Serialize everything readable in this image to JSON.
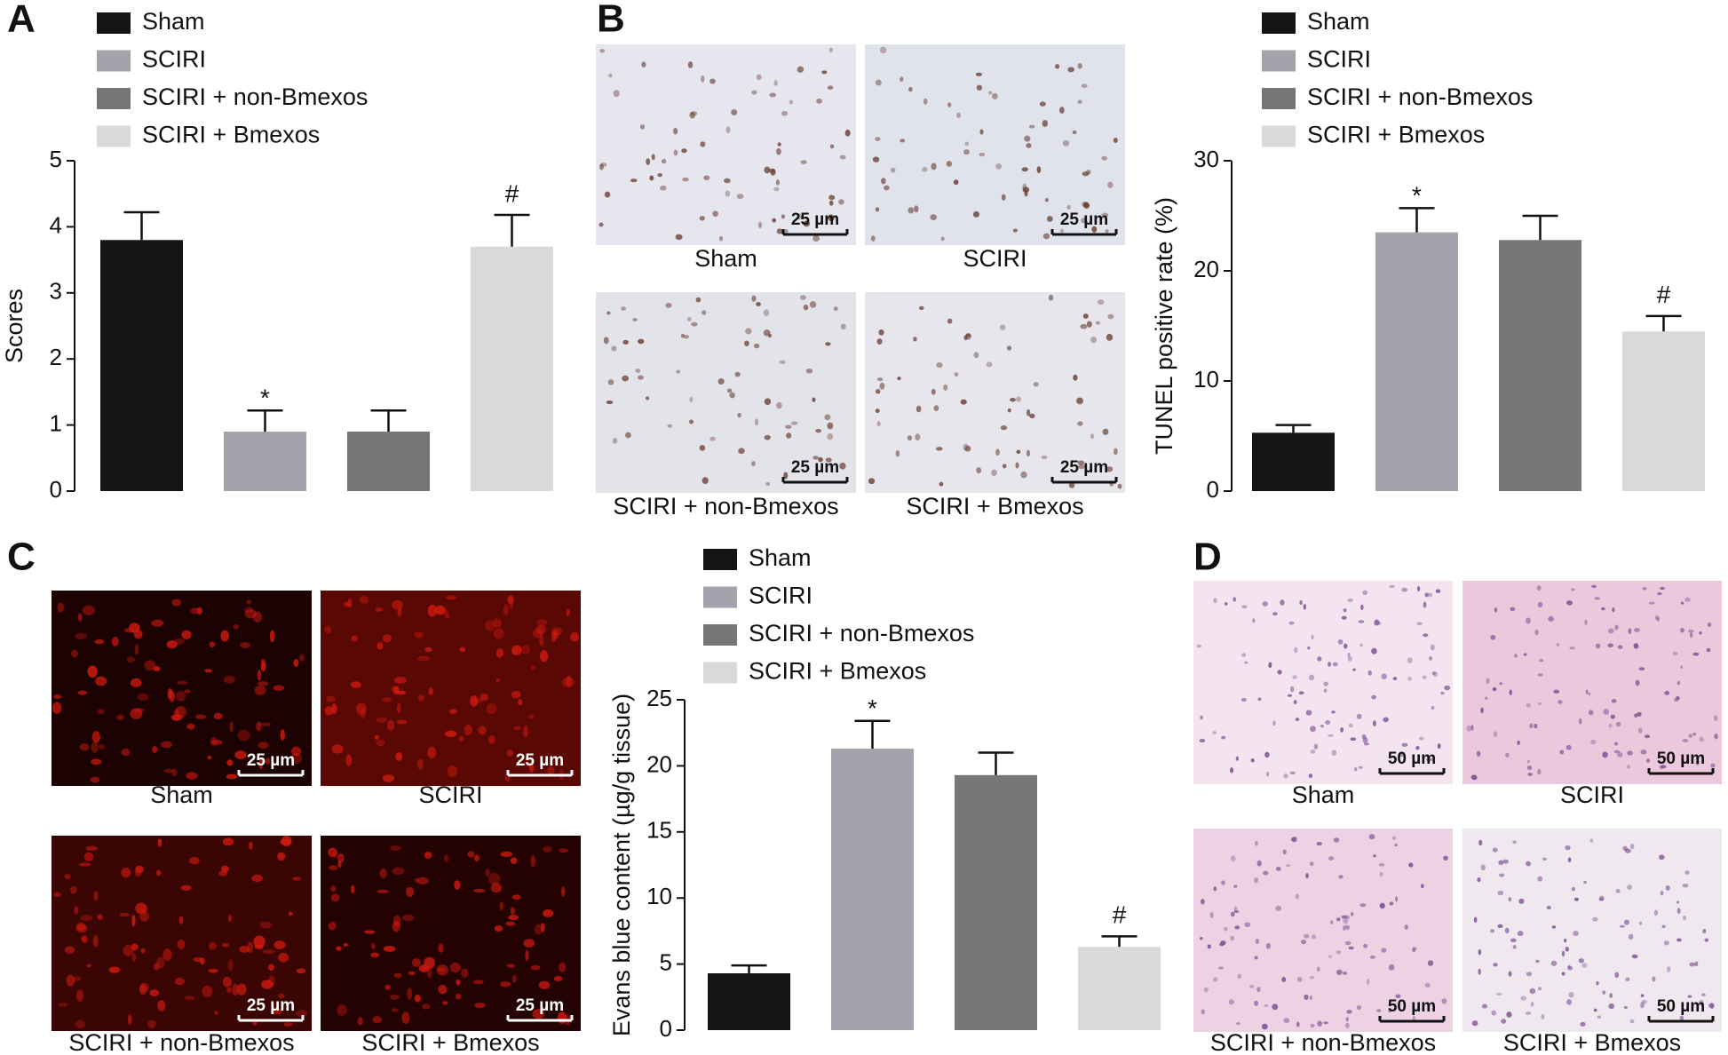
{
  "chart_data": [
    {
      "type": "bar",
      "ylabel": "Scores",
      "categories": [
        "Sham",
        "SCIRI",
        "SCIRI + non-Bmexos",
        "SCIRI + Bmexos"
      ],
      "colors": [
        "#141414",
        "#a3a3ab",
        "#767676",
        "#d9d9d9"
      ],
      "values": [
        3.8,
        0.9,
        0.9,
        3.7
      ],
      "errors": [
        0.42,
        0.32,
        0.32,
        0.48
      ],
      "annotations": [
        null,
        "*",
        null,
        "#"
      ],
      "ylim": [
        0,
        5
      ],
      "yticks": [
        0,
        1,
        2,
        3,
        4,
        5
      ]
    },
    {
      "type": "bar",
      "ylabel": "TUNEL positive rate (%)",
      "categories": [
        "Sham",
        "SCIRI",
        "SCIRI + non-Bmexos",
        "SCIRI + Bmexos"
      ],
      "colors": [
        "#141414",
        "#a3a3ab",
        "#767676",
        "#d9d9d9"
      ],
      "values": [
        5.3,
        23.5,
        22.8,
        14.5
      ],
      "errors": [
        0.7,
        2.2,
        2.2,
        1.4
      ],
      "annotations": [
        null,
        "*",
        null,
        "#"
      ],
      "ylim": [
        0,
        30
      ],
      "yticks": [
        0,
        10,
        20,
        30
      ]
    },
    {
      "type": "bar",
      "ylabel": "Evans blue content (µg/g tissue)",
      "categories": [
        "Sham",
        "SCIRI",
        "SCIRI + non-Bmexos",
        "SCIRI + Bmexos"
      ],
      "colors": [
        "#141414",
        "#a3a3ab",
        "#767676",
        "#d9d9d9"
      ],
      "values": [
        4.3,
        21.3,
        19.3,
        6.3
      ],
      "errors": [
        0.6,
        2.1,
        1.7,
        0.8
      ],
      "annotations": [
        null,
        "*",
        null,
        "#"
      ],
      "ylim": [
        0,
        25
      ],
      "yticks": [
        0,
        5,
        10,
        15,
        20,
        25
      ]
    }
  ],
  "figure": {
    "panel_labels": [
      "A",
      "B",
      "C",
      "D"
    ],
    "micrographs": [
      {
        "scale_bar": "25 µm",
        "captions": [
          "Sham",
          "SCIRI",
          "SCIRI + non-Bmexos",
          "SCIRI + Bmexos"
        ]
      },
      {
        "scale_bar": "25 µm",
        "captions": [
          "Sham",
          "SCIRI",
          "SCIRI + non-Bmexos",
          "SCIRI + Bmexos"
        ]
      },
      {
        "scale_bar": "50 µm",
        "captions": [
          "Sham",
          "SCIRI",
          "SCIRI + non-Bmexos",
          "SCIRI + Bmexos"
        ]
      }
    ]
  }
}
